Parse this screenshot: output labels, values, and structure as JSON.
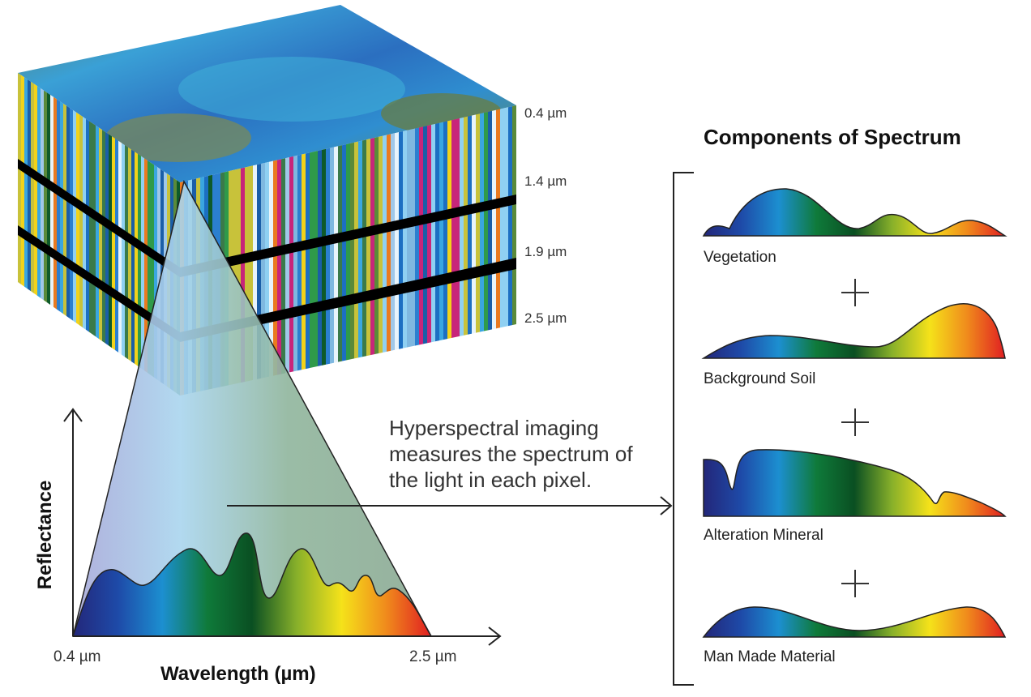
{
  "colors": {
    "spectrum": [
      "#23277a",
      "#1e4aa8",
      "#1c8fd0",
      "#0f7a3a",
      "#0a4f22",
      "#88b02a",
      "#f5e21a",
      "#f08a1c",
      "#e01e22"
    ],
    "cube_top": [
      "#2a7fc8",
      "#3fa0d8",
      "#6fa05a",
      "#8a8a4a"
    ],
    "wedge": "#9ab3a2"
  },
  "cube": {
    "bands": [
      "0.4 µm",
      "1.4 µm",
      "1.9 µm",
      "2.5 µm"
    ]
  },
  "components": {
    "title": "Components of Spectrum",
    "items": [
      {
        "label": "Vegetation"
      },
      {
        "label": "Background Soil"
      },
      {
        "label": "Alteration Mineral"
      },
      {
        "label": "Man Made Material"
      }
    ]
  },
  "note": {
    "text": "Hyperspectral imaging measures the spectrum of the light in each pixel."
  },
  "chart_data": {
    "type": "area",
    "xlabel": "Wavelength (µm)",
    "ylabel": "Reflectance",
    "xmin_label": "0.4 µm",
    "xmax_label": "2.5 µm"
  }
}
